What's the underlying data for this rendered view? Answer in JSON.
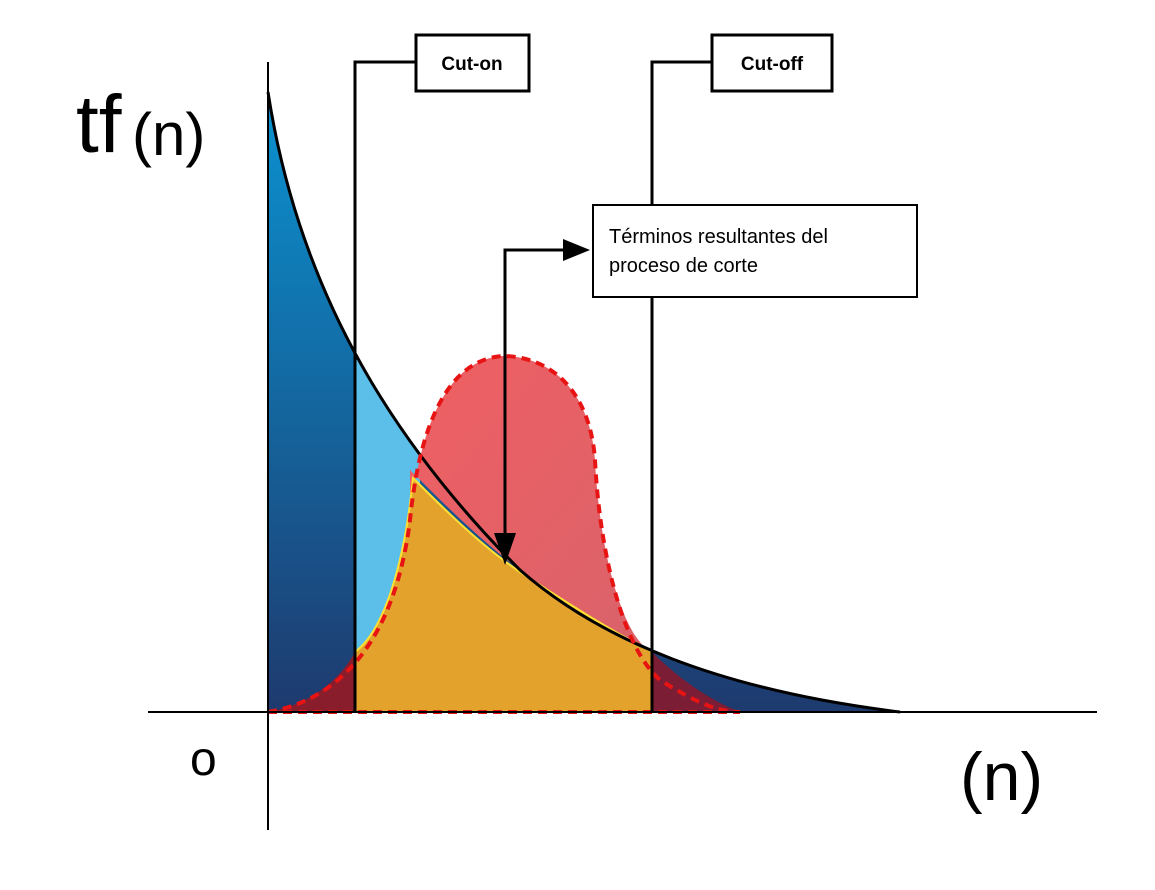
{
  "diagram": {
    "y_axis_label_main": "tf",
    "y_axis_label_sub": "(n)",
    "x_axis_label": "(n)",
    "origin_label": "o",
    "cut_on_label": "Cut-on",
    "cut_off_label": "Cut-off",
    "annotation_line1": "Términos resultantes del",
    "annotation_line2": "proceso de corte"
  },
  "colors": {
    "curve_fill_top": "#0a93d1",
    "curve_fill_bottom": "#1e3a6e",
    "light_blue": "#5bbfea",
    "red_fill": "#e8585f",
    "red_dash": "#e81414",
    "orange_fill": "#e3a22c",
    "yellow_edge": "#ffe033",
    "dark_red": "#8a1d2c"
  }
}
